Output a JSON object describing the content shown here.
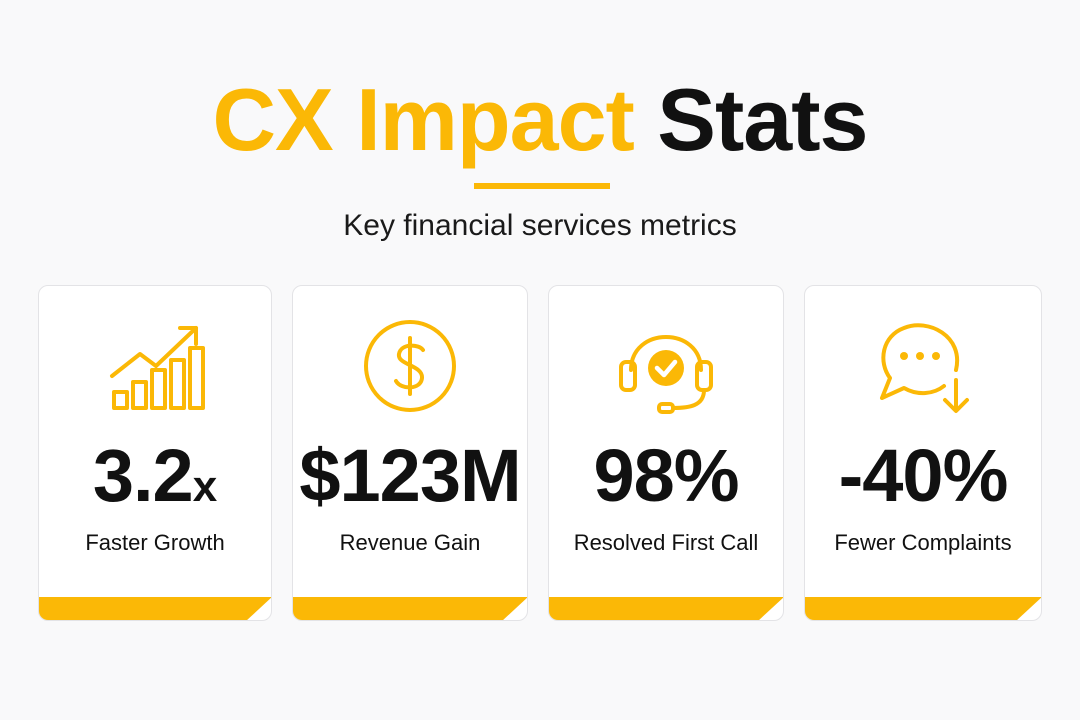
{
  "header": {
    "title_accent": "CX Impact",
    "title_dark": "Stats",
    "subtitle": "Key financial services metrics"
  },
  "colors": {
    "accent": "#fbb806",
    "text": "#111111",
    "background": "#f9f9fa",
    "card": "#ffffff"
  },
  "stats": [
    {
      "icon": "growth-chart-icon",
      "value": "3.2",
      "suffix": "x",
      "label": "Faster Growth"
    },
    {
      "icon": "dollar-coin-icon",
      "value": "$123M",
      "suffix": "",
      "label": "Revenue Gain"
    },
    {
      "icon": "headset-check-icon",
      "value": "98%",
      "suffix": "",
      "label": "Resolved First Call"
    },
    {
      "icon": "chat-down-arrow-icon",
      "value": "-40%",
      "suffix": "",
      "label": "Fewer Complaints"
    }
  ]
}
